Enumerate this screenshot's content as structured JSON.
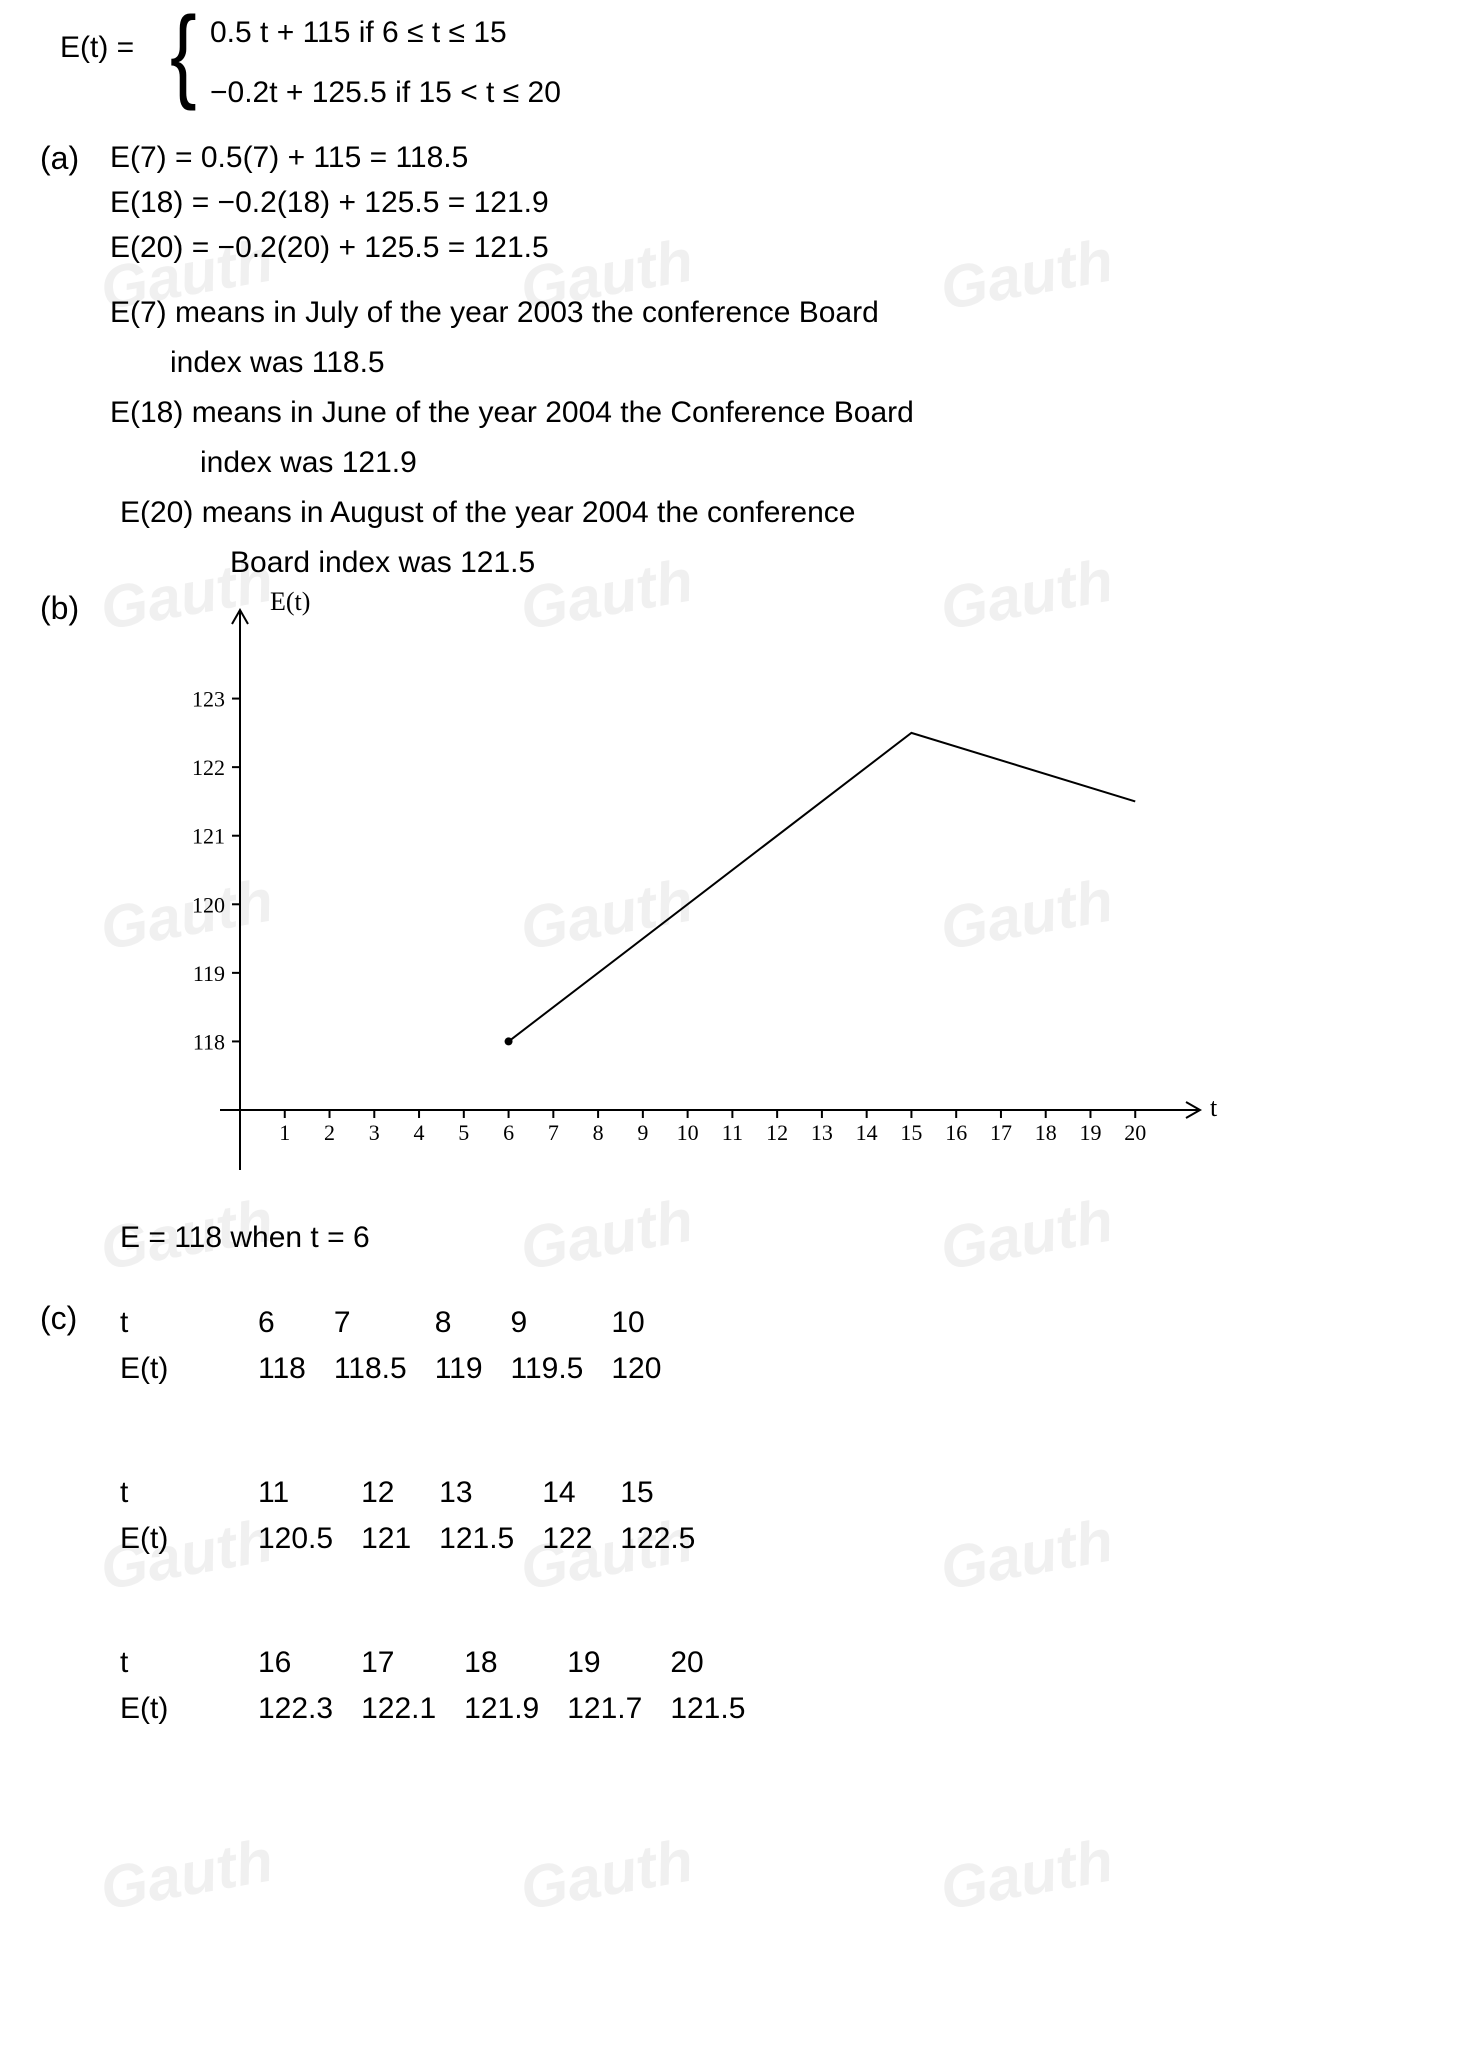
{
  "piecewise": {
    "lhs": "E(t) =",
    "case1": "0.5 t + 115     if  6 ≤ t ≤ 15",
    "case2": "−0.2t + 125.5   if  15 < t ≤ 20"
  },
  "partA": {
    "label": "(a)",
    "e7": "E(7)  = 0.5(7) + 115 =  118.5",
    "e18": "E(18) = −0.2(18) + 125.5  = 121.9",
    "e20": "E(20) = −0.2(20) + 125.5  = 121.5",
    "int7a": "E(7) means in July of the year 2003 the conference Board",
    "int7b": "index was 118.5",
    "int18a": "E(18) means in June of the year 2004 the Conference Board",
    "int18b": "index was 121.9",
    "int20a": "E(20) means in August of the year 2004 the conference",
    "int20b": "Board index was 121.5"
  },
  "partB": {
    "label": "(b)",
    "chart": {
      "type": "line",
      "y_axis_title": "E(t)",
      "x_axis_title": "t",
      "x_ticks": [
        "1",
        "2",
        "3",
        "4",
        "5",
        "6",
        "7",
        "8",
        "9",
        "10",
        "11",
        "12",
        "13",
        "14",
        "15",
        "16",
        "17",
        "18",
        "19",
        "20"
      ],
      "y_ticks": [
        "118",
        "119",
        "120",
        "121",
        "122",
        "123"
      ],
      "xlim": [
        0,
        21
      ],
      "ylim": [
        117,
        124
      ],
      "points": [
        {
          "t": 6,
          "E": 118.0
        },
        {
          "t": 15,
          "E": 122.5
        },
        {
          "t": 20,
          "E": 121.5
        }
      ],
      "line_color": "#000000",
      "line_width": 2,
      "axis_color": "#000000",
      "tick_font_size": 22,
      "background_color": "#ffffff"
    },
    "footer": "E = 118   when  t = 6"
  },
  "partC": {
    "label": "(c)",
    "rows": [
      {
        "head_t": "t",
        "head_E": "E(t)",
        "t": [
          "6",
          "7",
          "8",
          "9",
          "10"
        ],
        "E": [
          "118",
          "118.5",
          "119",
          "119.5",
          "120"
        ]
      },
      {
        "head_t": "t",
        "head_E": "E(t)",
        "t": [
          "11",
          "12",
          "13",
          "14",
          "15"
        ],
        "E": [
          "120.5",
          "121",
          "121.5",
          "122",
          "122.5"
        ]
      },
      {
        "head_t": "t",
        "head_E": "E(t)",
        "t": [
          "16",
          "17",
          "18",
          "19",
          "20"
        ],
        "E": [
          "122.3",
          "122.1",
          "121.9",
          "121.7",
          "121.5"
        ]
      }
    ]
  },
  "watermark_text": "Gauth"
}
